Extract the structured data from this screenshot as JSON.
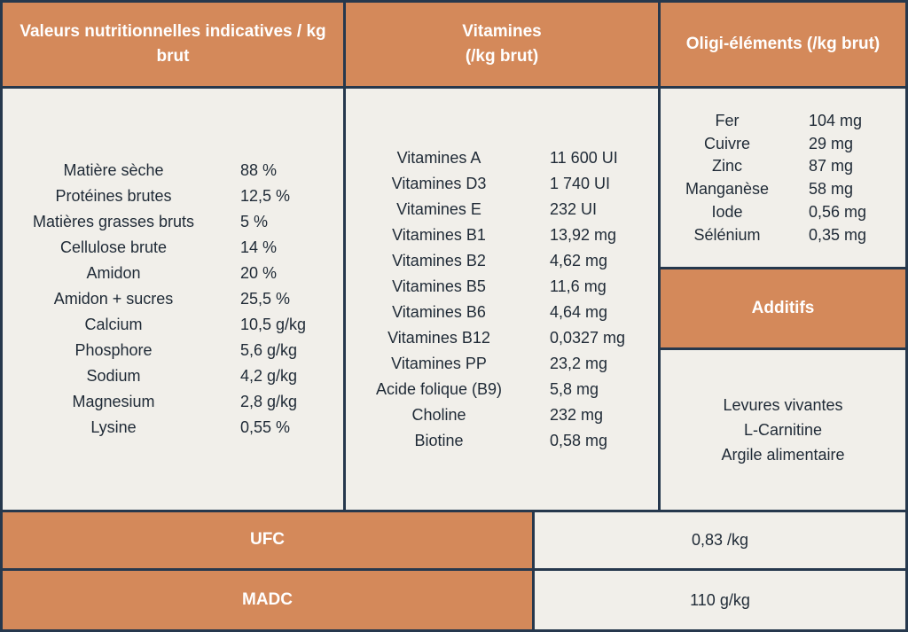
{
  "headers": {
    "nutri": "Valeurs nutritionnelles indicatives / kg brut",
    "vitamines": "Vitamines (/kg brut)",
    "oligo": "Oligi-éléments (/kg brut)",
    "additifs": "Additifs",
    "ufc": "UFC",
    "madc": "MADC"
  },
  "nutrition": [
    {
      "label": "Matière sèche",
      "value": "88 %"
    },
    {
      "label": "Protéines brutes",
      "value": "12,5 %"
    },
    {
      "label": "Matières grasses bruts",
      "value": "5 %"
    },
    {
      "label": "Cellulose brute",
      "value": "14 %"
    },
    {
      "label": "Amidon",
      "value": "20 %"
    },
    {
      "label": "Amidon + sucres",
      "value": "25,5 %"
    },
    {
      "label": "Calcium",
      "value": "10,5 g/kg"
    },
    {
      "label": "Phosphore",
      "value": "5,6 g/kg"
    },
    {
      "label": "Sodium",
      "value": "4,2 g/kg"
    },
    {
      "label": "Magnesium",
      "value": "2,8 g/kg"
    },
    {
      "label": "Lysine",
      "value": "0,55 %"
    }
  ],
  "vitamins": [
    {
      "label": "Vitamines A",
      "value": "11 600 UI"
    },
    {
      "label": "Vitamines D3",
      "value": "1 740 UI"
    },
    {
      "label": "Vitamines E",
      "value": "232 UI"
    },
    {
      "label": "Vitamines B1",
      "value": "13,92 mg"
    },
    {
      "label": "Vitamines B2",
      "value": "4,62 mg"
    },
    {
      "label": "Vitamines B5",
      "value": "11,6 mg"
    },
    {
      "label": "Vitamines B6",
      "value": "4,64 mg"
    },
    {
      "label": "Vitamines B12",
      "value": "0,0327 mg"
    },
    {
      "label": "Vitamines PP",
      "value": "23,2 mg"
    },
    {
      "label": "Acide folique (B9)",
      "value": "5,8 mg"
    },
    {
      "label": "Choline",
      "value": "232 mg"
    },
    {
      "label": "Biotine",
      "value": "0,58 mg"
    }
  ],
  "oligo": [
    {
      "label": "Fer",
      "value": "104 mg"
    },
    {
      "label": "Cuivre",
      "value": "29 mg"
    },
    {
      "label": "Zinc",
      "value": "87 mg"
    },
    {
      "label": "Manganèse",
      "value": "58 mg"
    },
    {
      "label": "Iode",
      "value": "0,56 mg"
    },
    {
      "label": "Sélénium",
      "value": "0,35 mg"
    }
  ],
  "additifs": [
    "Levures vivantes",
    "L-Carnitine",
    "Argile alimentaire"
  ],
  "ufc_value": "0,83 /kg",
  "madc_value": "110 g/kg"
}
